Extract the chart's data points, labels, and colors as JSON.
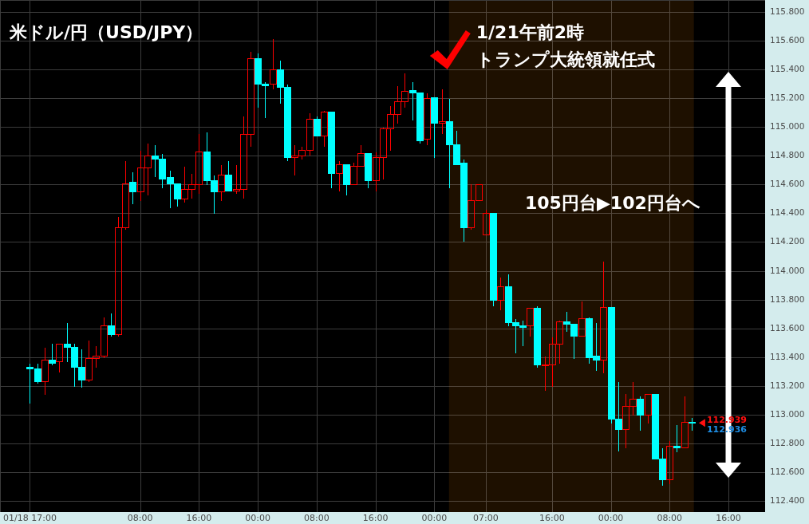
{
  "chart_data": {
    "type": "candlestick",
    "title": "米ドル/円（USD/JPY）",
    "annotations": [
      "1/21午前2時",
      "トランプ大統領就任式",
      "105円台▶102円台へ",
      "112.939",
      "112.936"
    ],
    "categories": [
      "01/18 17:00",
      null,
      null,
      null,
      null,
      null,
      null,
      null,
      null,
      null,
      null,
      null,
      null,
      null,
      null,
      "08:00",
      null,
      null,
      null,
      null,
      null,
      null,
      null,
      "16:00",
      null,
      null,
      null,
      null,
      null,
      null,
      null,
      "00:00",
      null,
      null,
      null,
      null,
      null,
      null,
      null,
      "08:00",
      null,
      null,
      null,
      null,
      null,
      null,
      null,
      "16:00",
      null,
      null,
      null,
      null,
      null,
      null,
      null,
      "00:00",
      null,
      null,
      null,
      null,
      null,
      null,
      "07:00",
      null,
      null,
      null,
      null,
      null,
      null,
      null,
      null,
      "16:00",
      null,
      null,
      null,
      null,
      null,
      null,
      null,
      "00:00",
      null,
      null,
      null,
      null,
      null,
      null,
      null,
      "08:00",
      null,
      null,
      null,
      null,
      null,
      null,
      null,
      "16:00"
    ],
    "ohlc": [
      [
        113.33,
        113.36,
        113.08,
        113.32
      ],
      [
        113.32,
        113.36,
        113.22,
        113.23
      ],
      [
        113.23,
        113.47,
        113.14,
        113.38
      ],
      [
        113.38,
        113.5,
        113.35,
        113.36
      ],
      [
        113.37,
        113.5,
        113.3,
        113.49
      ],
      [
        113.49,
        113.64,
        113.37,
        113.47
      ],
      [
        113.47,
        113.5,
        113.2,
        113.33
      ],
      [
        113.33,
        113.46,
        113.19,
        113.24
      ],
      [
        113.24,
        113.52,
        113.23,
        113.39
      ],
      [
        113.39,
        113.48,
        113.33,
        113.41
      ],
      [
        113.41,
        113.68,
        113.4,
        113.62
      ],
      [
        113.62,
        113.71,
        113.55,
        113.56
      ],
      [
        113.56,
        114.38,
        113.55,
        114.3
      ],
      [
        114.3,
        114.77,
        114.29,
        114.61
      ],
      [
        114.62,
        114.69,
        114.47,
        114.55
      ],
      [
        114.55,
        114.84,
        114.49,
        114.72
      ],
      [
        114.72,
        114.89,
        114.53,
        114.8
      ],
      [
        114.8,
        114.88,
        114.66,
        114.78
      ],
      [
        114.78,
        114.82,
        114.58,
        114.64
      ],
      [
        114.65,
        114.7,
        114.44,
        114.61
      ],
      [
        114.61,
        114.61,
        114.45,
        114.5
      ],
      [
        114.5,
        114.73,
        114.48,
        114.57
      ],
      [
        114.57,
        114.68,
        114.51,
        114.6
      ],
      [
        114.6,
        114.96,
        114.54,
        114.83
      ],
      [
        114.83,
        114.97,
        114.6,
        114.63
      ],
      [
        114.63,
        114.67,
        114.4,
        114.55
      ],
      [
        114.55,
        114.74,
        114.49,
        114.67
      ],
      [
        114.67,
        114.77,
        114.56,
        114.56
      ],
      [
        114.56,
        114.74,
        114.54,
        114.57
      ],
      [
        114.57,
        115.08,
        114.51,
        114.95
      ],
      [
        114.95,
        115.53,
        114.87,
        115.48
      ],
      [
        115.48,
        115.52,
        115.14,
        115.3
      ],
      [
        115.3,
        115.32,
        115.07,
        115.29
      ],
      [
        115.3,
        115.62,
        115.27,
        115.4
      ],
      [
        115.4,
        115.47,
        115.17,
        115.28
      ],
      [
        115.28,
        115.3,
        114.77,
        114.79
      ],
      [
        114.79,
        114.88,
        114.67,
        114.8
      ],
      [
        114.8,
        114.87,
        114.78,
        114.84
      ],
      [
        114.84,
        115.1,
        114.81,
        115.06
      ],
      [
        115.06,
        115.08,
        114.94,
        114.94
      ],
      [
        114.94,
        115.12,
        114.87,
        115.11
      ],
      [
        115.11,
        115.11,
        114.58,
        114.68
      ],
      [
        114.68,
        114.77,
        114.56,
        114.74
      ],
      [
        114.74,
        114.74,
        114.53,
        114.6
      ],
      [
        114.6,
        114.76,
        114.6,
        114.73
      ],
      [
        114.73,
        114.88,
        114.73,
        114.82
      ],
      [
        114.82,
        114.82,
        114.58,
        114.63
      ],
      [
        114.63,
        114.83,
        114.56,
        114.79
      ],
      [
        114.79,
        115.0,
        114.64,
        114.99
      ],
      [
        114.99,
        115.15,
        114.84,
        115.09
      ],
      [
        115.09,
        115.29,
        115.03,
        115.18
      ],
      [
        115.18,
        115.38,
        115.14,
        115.25
      ],
      [
        115.26,
        115.32,
        115.05,
        115.24
      ],
      [
        115.24,
        115.24,
        114.89,
        114.91
      ],
      [
        114.92,
        115.24,
        114.88,
        115.2
      ],
      [
        115.21,
        115.21,
        114.79,
        115.03
      ],
      [
        115.03,
        115.27,
        114.96,
        115.04
      ],
      [
        115.04,
        115.2,
        114.58,
        114.88
      ],
      [
        114.88,
        114.98,
        114.74,
        114.74
      ],
      [
        114.75,
        114.78,
        114.21,
        114.3
      ],
      [
        114.3,
        114.61,
        114.29,
        114.49
      ],
      [
        114.49,
        114.61,
        114.49,
        114.6
      ],
      [
        114.25,
        114.43,
        114.25,
        114.4
      ],
      [
        114.4,
        114.4,
        113.76,
        113.8
      ],
      [
        113.8,
        113.96,
        113.73,
        113.89
      ],
      [
        113.89,
        113.98,
        113.62,
        113.64
      ],
      [
        113.64,
        113.67,
        113.43,
        113.62
      ],
      [
        113.62,
        113.66,
        113.48,
        113.61
      ],
      [
        113.62,
        113.75,
        113.55,
        113.74
      ],
      [
        113.74,
        113.76,
        113.33,
        113.35
      ],
      [
        113.34,
        113.41,
        113.17,
        113.35
      ],
      [
        113.35,
        113.54,
        113.2,
        113.49
      ],
      [
        113.49,
        113.66,
        113.36,
        113.65
      ],
      [
        113.65,
        113.72,
        113.58,
        113.63
      ],
      [
        113.63,
        113.63,
        113.39,
        113.55
      ],
      [
        113.55,
        113.79,
        113.55,
        113.67
      ],
      [
        113.67,
        113.68,
        113.36,
        113.4
      ],
      [
        113.41,
        113.64,
        113.31,
        113.38
      ],
      [
        113.38,
        114.07,
        113.29,
        113.75
      ],
      [
        113.75,
        113.75,
        112.94,
        112.97
      ],
      [
        112.97,
        113.23,
        112.75,
        112.9
      ],
      [
        112.9,
        113.15,
        112.77,
        113.06
      ],
      [
        113.06,
        113.23,
        113.0,
        113.11
      ],
      [
        113.11,
        113.13,
        112.89,
        113.0
      ],
      [
        113.0,
        113.15,
        112.94,
        113.14
      ],
      [
        113.14,
        113.14,
        112.69,
        112.69
      ],
      [
        112.69,
        112.77,
        112.51,
        112.55
      ],
      [
        112.55,
        112.82,
        112.52,
        112.78
      ],
      [
        112.78,
        112.93,
        112.74,
        112.77
      ],
      [
        112.77,
        113.13,
        112.77,
        112.95
      ],
      [
        112.95,
        112.98,
        112.89,
        112.94
      ],
      null,
      null,
      null,
      null,
      null
    ],
    "colors": [
      "#00ffff",
      "#00ffff",
      "#ff0000",
      "#00ffff",
      "#ff0000",
      "#00ffff",
      "#00ffff",
      "#00ffff",
      "#ff0000",
      "#ff0000",
      "#ff0000",
      "#00ffff",
      "#ff0000",
      "#ff0000",
      "#00ffff",
      "#ff0000",
      "#ff0000",
      "#00ffff",
      "#00ffff",
      "#00ffff",
      "#00ffff",
      "#ff0000",
      "#ff0000",
      "#ff0000",
      "#00ffff",
      "#00ffff",
      "#ff0000",
      "#00ffff",
      "#ff0000",
      "#ff0000",
      "#ff0000",
      "#00ffff",
      "#00ffff",
      "#ff0000",
      "#00ffff",
      "#00ffff",
      "#ff0000",
      "#ff0000",
      "#ff0000",
      "#00ffff",
      "#ff0000",
      "#00ffff",
      "#ff0000",
      "#00ffff",
      "#ff0000",
      "#ff0000",
      "#00ffff",
      "#ff0000",
      "#ff0000",
      "#ff0000",
      "#ff0000",
      "#ff0000",
      "#00ffff",
      "#00ffff",
      "#ff0000",
      "#00ffff",
      "#ff0000",
      "#00ffff",
      "#00ffff",
      "#00ffff",
      "#ff0000",
      "#ff0000",
      "#ff0000",
      "#00ffff",
      "#ff0000",
      "#00ffff",
      "#00ffff",
      "#00ffff",
      "#ff0000",
      "#00ffff",
      "#ff0000",
      "#ff0000",
      "#ff0000",
      "#00ffff",
      "#00ffff",
      "#ff0000",
      "#00ffff",
      "#00ffff",
      "#ff0000",
      "#00ffff",
      "#00ffff",
      "#ff0000",
      "#ff0000",
      "#00ffff",
      "#ff0000",
      "#00ffff",
      "#00ffff",
      "#ff0000",
      "#00ffff",
      "#ff0000",
      "#00ffff",
      null,
      null,
      null,
      null,
      null
    ],
    "ylim": [
      112.32,
      115.88
    ],
    "yticks": [
      {
        "value": 112.4,
        "label": "112.400"
      },
      {
        "value": 112.6,
        "label": "112.600"
      },
      {
        "value": 112.8,
        "label": "112.800"
      },
      {
        "value": 113.0,
        "label": "113.000"
      },
      {
        "value": 113.2,
        "label": "113.200"
      },
      {
        "value": 113.4,
        "label": "113.400"
      },
      {
        "value": 113.6,
        "label": "113.600"
      },
      {
        "value": 113.8,
        "label": "113.800"
      },
      {
        "value": 114.0,
        "label": "114.000"
      },
      {
        "value": 114.2,
        "label": "114.200"
      },
      {
        "value": 114.4,
        "label": "114.400"
      },
      {
        "value": 114.6,
        "label": "114.600"
      },
      {
        "value": 114.8,
        "label": "114.800"
      },
      {
        "value": 115.0,
        "label": "115.000"
      },
      {
        "value": 115.2,
        "label": "115.200"
      },
      {
        "value": 115.4,
        "label": "115.400"
      },
      {
        "value": 115.6,
        "label": "115.600"
      },
      {
        "value": 115.8,
        "label": "115.800"
      }
    ],
    "grid": true
  }
}
